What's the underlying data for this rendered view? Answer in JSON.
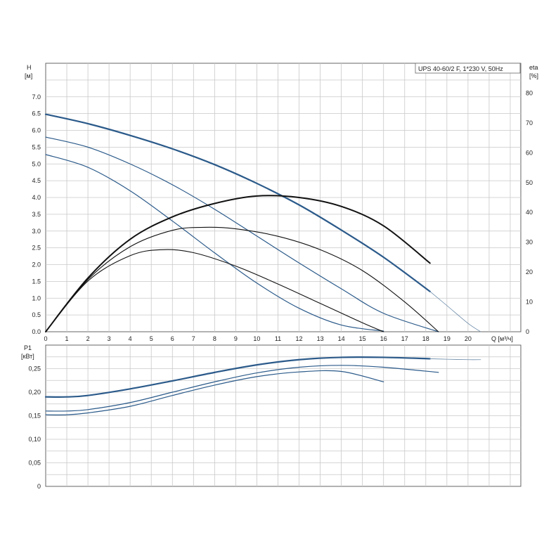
{
  "chart_data": [
    {
      "type": "line",
      "title": "UPS 40-60/2 F, 1*230 V, 50Hz",
      "xlabel": "Q [м³/ч]",
      "ylabel": "H [м]",
      "ylabel_top": "H",
      "ylabel_unit": "[м]",
      "y2label_top": "eta",
      "y2label_unit": "[%]",
      "xlabel_text": "Q [м³/ч]",
      "xlim": [
        0,
        22.5
      ],
      "ylim": [
        0,
        8
      ],
      "y2lim": [
        0,
        90
      ],
      "grid": true,
      "x_ticks": [
        "0",
        "1",
        "2",
        "3",
        "4",
        "5",
        "6",
        "7",
        "8",
        "9",
        "10",
        "11",
        "12",
        "13",
        "14",
        "15",
        "16",
        "17",
        "18",
        "19",
        "20"
      ],
      "y_ticks": [
        "0.0",
        "0.5",
        "1.0",
        "1.5",
        "2.0",
        "2.5",
        "3.0",
        "3.5",
        "4.0",
        "4.5",
        "5.0",
        "5.5",
        "6.0",
        "6.5",
        "7.0"
      ],
      "y2_ticks": [
        "0",
        "10",
        "20",
        "30",
        "40",
        "50",
        "60",
        "70",
        "80"
      ],
      "series": [
        {
          "kind": "head",
          "color": "#2b5a8a",
          "width": 2.2,
          "x": [
            0,
            2,
            4,
            6,
            8,
            10,
            12,
            14,
            16,
            18.2
          ],
          "y": [
            6.48,
            6.2,
            5.85,
            5.45,
            4.98,
            4.42,
            3.78,
            3.03,
            2.22,
            1.2
          ]
        },
        {
          "kind": "head-ext",
          "color": "#6a8aa8",
          "width": 0.8,
          "x": [
            18.2,
            19,
            20,
            20.6
          ],
          "y": [
            1.2,
            0.78,
            0.25,
            0.0
          ]
        },
        {
          "kind": "head",
          "color": "#2b5a8a",
          "width": 1.2,
          "x": [
            0,
            2,
            4,
            6,
            8,
            10,
            12,
            14,
            16,
            18.6
          ],
          "y": [
            5.8,
            5.5,
            5.0,
            4.38,
            3.65,
            2.85,
            2.05,
            1.28,
            0.55,
            0.0
          ]
        },
        {
          "kind": "head",
          "color": "#2b5a8a",
          "width": 1.2,
          "x": [
            0,
            2,
            4,
            6,
            8,
            10,
            12,
            14,
            16
          ],
          "y": [
            5.28,
            4.9,
            4.2,
            3.3,
            2.35,
            1.45,
            0.7,
            0.2,
            0.02
          ]
        },
        {
          "kind": "eta",
          "color": "#111111",
          "width": 2.0,
          "x": [
            0,
            2,
            4,
            6,
            8,
            10,
            12,
            14,
            16,
            18.2
          ],
          "y": [
            0,
            18,
            31,
            38.5,
            43,
            45.5,
            45,
            42,
            35.5,
            23
          ]
        },
        {
          "kind": "eta",
          "color": "#111111",
          "width": 1.1,
          "x": [
            0,
            2,
            4,
            6,
            7.5,
            9,
            11,
            13,
            15,
            17,
            18.6
          ],
          "y": [
            0,
            17.5,
            28.5,
            34,
            35,
            34.5,
            32,
            27.5,
            20.5,
            10,
            0
          ]
        },
        {
          "kind": "eta",
          "color": "#111111",
          "width": 1.1,
          "x": [
            0,
            2,
            4,
            5.5,
            7,
            9,
            11,
            13,
            15,
            16
          ],
          "y": [
            0,
            17,
            25.5,
            27.5,
            26.5,
            22,
            16,
            9.5,
            3,
            0
          ]
        }
      ]
    },
    {
      "type": "line",
      "ylabel": "P1 [кВт]",
      "ylabel_top": "P1",
      "ylabel_unit": "[кВт]",
      "xlim": [
        0,
        22.5
      ],
      "ylim": [
        0,
        0.3
      ],
      "grid": true,
      "y_ticks": [
        "0",
        "0,05",
        "0,10",
        "0,15",
        "0,20",
        "0,25"
      ],
      "series": [
        {
          "kind": "power",
          "color": "#2b5a8a",
          "width": 2.2,
          "x": [
            0,
            1,
            2,
            4,
            6,
            8,
            10,
            12,
            14,
            16,
            18.2
          ],
          "y": [
            0.19,
            0.19,
            0.193,
            0.207,
            0.224,
            0.242,
            0.258,
            0.269,
            0.274,
            0.274,
            0.271
          ]
        },
        {
          "kind": "power-ext",
          "color": "#6a8aa8",
          "width": 0.8,
          "x": [
            18.2,
            19,
            20,
            20.6
          ],
          "y": [
            0.271,
            0.27,
            0.269,
            0.269
          ]
        },
        {
          "kind": "power",
          "color": "#2b5a8a",
          "width": 1.2,
          "x": [
            0,
            1,
            2,
            4,
            6,
            8,
            10,
            12,
            14,
            16,
            18.6
          ],
          "y": [
            0.16,
            0.16,
            0.163,
            0.178,
            0.2,
            0.222,
            0.241,
            0.253,
            0.257,
            0.253,
            0.242
          ]
        },
        {
          "kind": "power",
          "color": "#2b5a8a",
          "width": 1.2,
          "x": [
            0,
            1,
            2,
            4,
            6,
            8,
            10,
            12,
            14,
            16
          ],
          "y": [
            0.152,
            0.152,
            0.156,
            0.17,
            0.193,
            0.215,
            0.233,
            0.243,
            0.244,
            0.222
          ]
        }
      ]
    }
  ]
}
